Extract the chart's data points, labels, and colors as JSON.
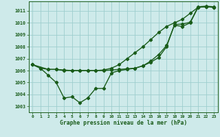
{
  "title": "Graphe pression niveau de la mer (hPa)",
  "bg_color": "#ceeaea",
  "grid_color": "#9ecece",
  "line_color": "#1a5c1a",
  "marker_color": "#1a5c1a",
  "xlim": [
    -0.5,
    23.5
  ],
  "ylim": [
    1002.5,
    1011.8
  ],
  "xticks": [
    0,
    1,
    2,
    3,
    4,
    5,
    6,
    7,
    8,
    9,
    10,
    11,
    12,
    13,
    14,
    15,
    16,
    17,
    18,
    19,
    20,
    21,
    22,
    23
  ],
  "yticks": [
    1003,
    1004,
    1005,
    1006,
    1007,
    1008,
    1009,
    1010,
    1011
  ],
  "series1_x": [
    0,
    1,
    2,
    3,
    4,
    5,
    6,
    7,
    8,
    9,
    10,
    11,
    12,
    13,
    14,
    15,
    16,
    17,
    18,
    19,
    20,
    21,
    22,
    23
  ],
  "series1_y": [
    1006.5,
    1006.2,
    1005.6,
    1005.0,
    1003.7,
    1003.8,
    1003.3,
    1003.7,
    1004.5,
    1004.5,
    1005.8,
    1006.0,
    1006.1,
    1006.2,
    1006.4,
    1006.8,
    1007.35,
    1008.1,
    1009.8,
    1009.7,
    1010.0,
    1011.3,
    1011.35,
    1011.3
  ],
  "series2_x": [
    0,
    2,
    3,
    4,
    5,
    6,
    7,
    8,
    9,
    10,
    11,
    12,
    13,
    14,
    15,
    16,
    17,
    18,
    19,
    20,
    21,
    22,
    23
  ],
  "series2_y": [
    1006.5,
    1006.1,
    1006.1,
    1006.05,
    1006.0,
    1006.0,
    1006.0,
    1006.0,
    1006.0,
    1006.05,
    1006.1,
    1006.15,
    1006.2,
    1006.4,
    1006.7,
    1007.1,
    1008.0,
    1009.85,
    1009.9,
    1010.05,
    1011.35,
    1011.4,
    1011.35
  ],
  "series3_x": [
    0,
    1,
    2,
    3,
    4,
    5,
    6,
    7,
    8,
    9,
    10,
    11,
    12,
    13,
    14,
    15,
    16,
    17,
    18,
    19,
    20,
    21,
    22,
    23
  ],
  "series3_y": [
    1006.5,
    1006.2,
    1006.1,
    1006.1,
    1006.0,
    1006.0,
    1006.0,
    1006.0,
    1006.0,
    1006.05,
    1006.2,
    1006.5,
    1007.0,
    1007.5,
    1008.0,
    1008.6,
    1009.2,
    1009.7,
    1010.0,
    1010.3,
    1010.8,
    1011.3,
    1011.35,
    1011.3
  ]
}
